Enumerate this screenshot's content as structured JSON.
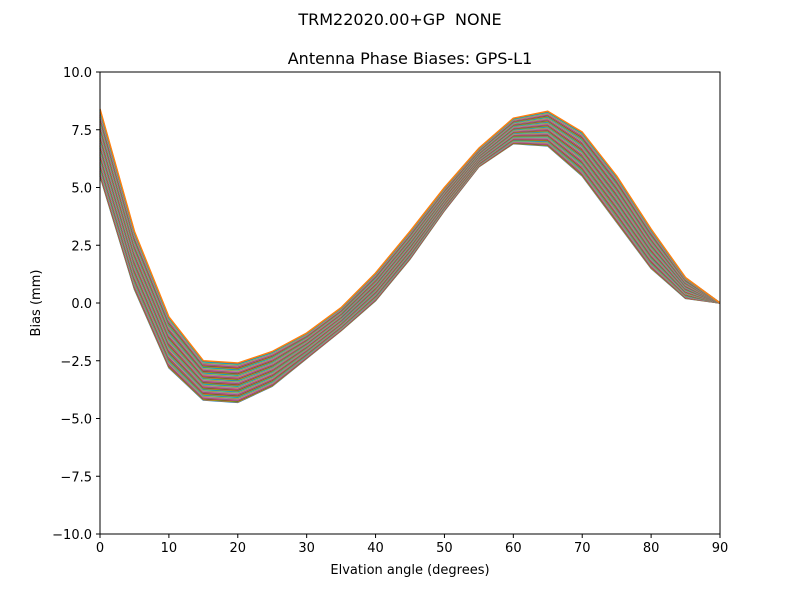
{
  "figure": {
    "suptitle": "TRM22020.00+GP  NONE"
  },
  "chart_data": {
    "type": "line",
    "title": "Antenna Phase Biases: GPS-L1",
    "xlabel": "Elvation angle (degrees)",
    "ylabel": "Bias (mm)",
    "xlim": [
      0,
      90
    ],
    "ylim": [
      -10,
      10
    ],
    "xticks": [
      "0",
      "10",
      "20",
      "30",
      "40",
      "50",
      "60",
      "70",
      "80",
      "90"
    ],
    "yticks": [
      "10.0",
      "7.5",
      "5.0",
      "2.5",
      "0.0",
      "−2.5",
      "−5.0",
      "−7.5",
      "−10.0"
    ],
    "grid": false,
    "legend": "none",
    "series_count": 72,
    "x": [
      0,
      5,
      10,
      15,
      20,
      25,
      30,
      35,
      40,
      45,
      50,
      55,
      60,
      65,
      70,
      75,
      80,
      85,
      90
    ],
    "envelope_upper": [
      8.4,
      3.1,
      -0.6,
      -2.5,
      -2.6,
      -2.1,
      -1.3,
      -0.2,
      1.3,
      3.1,
      5.0,
      6.7,
      8.0,
      8.3,
      7.4,
      5.5,
      3.2,
      1.1,
      0.0
    ],
    "envelope_lower": [
      5.5,
      0.6,
      -2.8,
      -4.2,
      -4.3,
      -3.6,
      -2.4,
      -1.2,
      0.1,
      1.9,
      4.0,
      5.9,
      6.9,
      6.8,
      5.5,
      3.5,
      1.5,
      0.2,
      0.0
    ],
    "colors": [
      "#1f77b4",
      "#ff7f0e",
      "#2ca02c",
      "#d62728",
      "#9467bd",
      "#8c564b",
      "#e377c2",
      "#7f7f7f",
      "#bcbd22",
      "#17becf"
    ]
  }
}
